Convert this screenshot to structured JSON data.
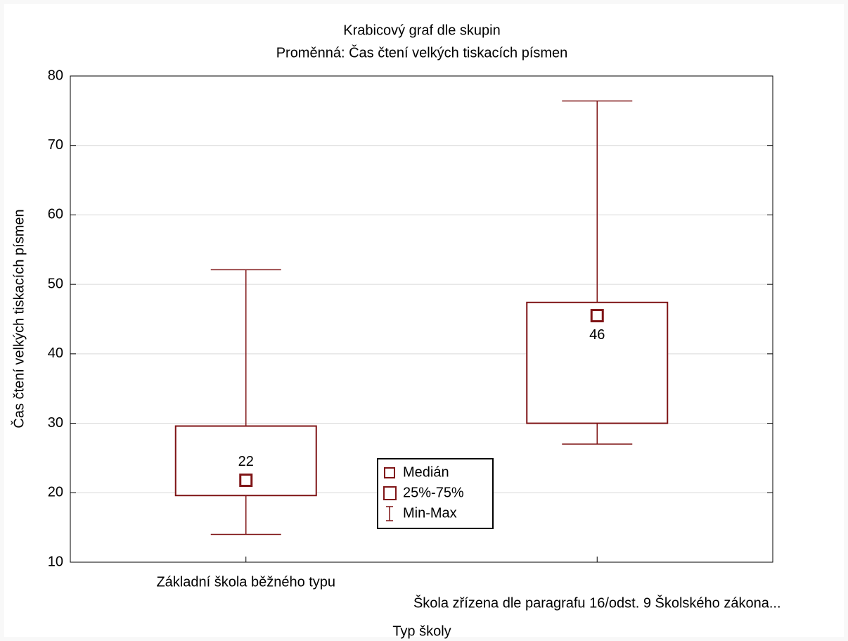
{
  "chart_data": {
    "type": "box",
    "title": "Krabicový graf dle skupin",
    "subtitle": "Proměnná: Čas čtení velkých tiskacích písmen",
    "x_label": "Typ školy",
    "y_label": "Čas čtení velkých tiskacích písmen",
    "categories": [
      "Základní škola běžného typu",
      "Škola zřízena dle paragrafu 16/odst. 9 Školského zákona..."
    ],
    "min": [
      14.0,
      27.0
    ],
    "q1": [
      19.6,
      30.0
    ],
    "median": [
      21.8,
      45.5
    ],
    "q3": [
      29.6,
      47.4
    ],
    "max": [
      52.1,
      76.4
    ],
    "value_labels": [
      "22",
      "46"
    ],
    "color": "#7f1416",
    "ylim": [
      10,
      80
    ],
    "yticks": [
      10,
      20,
      30,
      40,
      50,
      60,
      70,
      80
    ],
    "grid": true,
    "legend": [
      "Medián",
      "25%-75%",
      "Min-Max"
    ]
  }
}
